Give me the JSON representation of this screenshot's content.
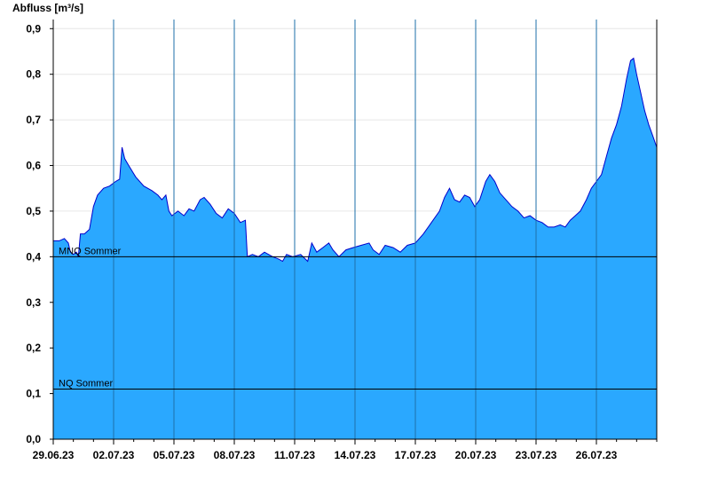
{
  "chart_data": {
    "type": "area",
    "ylabel": "Abfluss [m³/s]",
    "ylim": [
      0,
      0.92
    ],
    "y_ticks": [
      "0,0",
      "0,1",
      "0,2",
      "0,3",
      "0,4",
      "0,5",
      "0,6",
      "0,7",
      "0,8",
      "0,9"
    ],
    "y_tick_values": [
      0,
      0.1,
      0.2,
      0.3,
      0.4,
      0.5,
      0.6,
      0.7,
      0.8,
      0.9
    ],
    "x_start_date": "29.06.23",
    "x_range_days": [
      0,
      30
    ],
    "x_tick_labels": [
      "29.06.23",
      "02.07.23",
      "05.07.23",
      "08.07.23",
      "11.07.23",
      "14.07.23",
      "17.07.23",
      "20.07.23",
      "23.07.23",
      "26.07.23"
    ],
    "x_tick_days": [
      0,
      3,
      6,
      9,
      12,
      15,
      18,
      21,
      24,
      27
    ],
    "grid": true,
    "fill_color": "#2aa8ff",
    "line_color": "#0000cc",
    "reference_lines": [
      {
        "label": "MNQ Sommer",
        "value": 0.4
      },
      {
        "label": "NQ Sommer",
        "value": 0.11
      }
    ],
    "series": [
      {
        "name": "Abfluss",
        "points": [
          [
            0.0,
            0.435
          ],
          [
            0.3,
            0.435
          ],
          [
            0.55,
            0.44
          ],
          [
            0.75,
            0.43
          ],
          [
            0.85,
            0.41
          ],
          [
            1.0,
            0.405
          ],
          [
            1.15,
            0.41
          ],
          [
            1.25,
            0.4
          ],
          [
            1.35,
            0.45
          ],
          [
            1.55,
            0.45
          ],
          [
            1.8,
            0.46
          ],
          [
            2.0,
            0.51
          ],
          [
            2.2,
            0.535
          ],
          [
            2.5,
            0.55
          ],
          [
            2.8,
            0.555
          ],
          [
            3.1,
            0.565
          ],
          [
            3.3,
            0.57
          ],
          [
            3.42,
            0.64
          ],
          [
            3.55,
            0.615
          ],
          [
            3.75,
            0.6
          ],
          [
            4.1,
            0.575
          ],
          [
            4.5,
            0.555
          ],
          [
            4.9,
            0.545
          ],
          [
            5.2,
            0.535
          ],
          [
            5.4,
            0.525
          ],
          [
            5.6,
            0.535
          ],
          [
            5.75,
            0.5
          ],
          [
            5.9,
            0.49
          ],
          [
            6.2,
            0.5
          ],
          [
            6.5,
            0.49
          ],
          [
            6.75,
            0.505
          ],
          [
            7.0,
            0.5
          ],
          [
            7.3,
            0.525
          ],
          [
            7.5,
            0.53
          ],
          [
            7.8,
            0.515
          ],
          [
            8.1,
            0.495
          ],
          [
            8.4,
            0.485
          ],
          [
            8.7,
            0.505
          ],
          [
            9.0,
            0.495
          ],
          [
            9.3,
            0.475
          ],
          [
            9.55,
            0.48
          ],
          [
            9.65,
            0.4
          ],
          [
            9.9,
            0.405
          ],
          [
            10.2,
            0.4
          ],
          [
            10.5,
            0.41
          ],
          [
            10.9,
            0.4
          ],
          [
            11.2,
            0.395
          ],
          [
            11.4,
            0.39
          ],
          [
            11.6,
            0.405
          ],
          [
            11.9,
            0.4
          ],
          [
            12.3,
            0.405
          ],
          [
            12.65,
            0.39
          ],
          [
            12.85,
            0.43
          ],
          [
            13.1,
            0.41
          ],
          [
            13.4,
            0.42
          ],
          [
            13.7,
            0.43
          ],
          [
            13.9,
            0.415
          ],
          [
            14.2,
            0.4
          ],
          [
            14.55,
            0.415
          ],
          [
            14.9,
            0.42
          ],
          [
            15.3,
            0.425
          ],
          [
            15.7,
            0.43
          ],
          [
            15.9,
            0.415
          ],
          [
            16.2,
            0.405
          ],
          [
            16.5,
            0.425
          ],
          [
            16.9,
            0.42
          ],
          [
            17.25,
            0.41
          ],
          [
            17.6,
            0.425
          ],
          [
            18.0,
            0.43
          ],
          [
            18.4,
            0.45
          ],
          [
            18.8,
            0.475
          ],
          [
            19.2,
            0.5
          ],
          [
            19.45,
            0.53
          ],
          [
            19.7,
            0.55
          ],
          [
            19.95,
            0.525
          ],
          [
            20.2,
            0.52
          ],
          [
            20.45,
            0.535
          ],
          [
            20.7,
            0.53
          ],
          [
            20.95,
            0.51
          ],
          [
            21.2,
            0.525
          ],
          [
            21.5,
            0.565
          ],
          [
            21.7,
            0.58
          ],
          [
            21.95,
            0.565
          ],
          [
            22.2,
            0.54
          ],
          [
            22.5,
            0.525
          ],
          [
            22.8,
            0.51
          ],
          [
            23.1,
            0.5
          ],
          [
            23.4,
            0.485
          ],
          [
            23.7,
            0.49
          ],
          [
            24.0,
            0.48
          ],
          [
            24.3,
            0.475
          ],
          [
            24.6,
            0.465
          ],
          [
            24.9,
            0.465
          ],
          [
            25.2,
            0.47
          ],
          [
            25.45,
            0.465
          ],
          [
            25.7,
            0.48
          ],
          [
            25.95,
            0.49
          ],
          [
            26.2,
            0.5
          ],
          [
            26.5,
            0.525
          ],
          [
            26.75,
            0.55
          ],
          [
            27.0,
            0.565
          ],
          [
            27.25,
            0.58
          ],
          [
            27.5,
            0.62
          ],
          [
            27.75,
            0.66
          ],
          [
            28.0,
            0.69
          ],
          [
            28.25,
            0.73
          ],
          [
            28.5,
            0.79
          ],
          [
            28.7,
            0.83
          ],
          [
            28.85,
            0.835
          ],
          [
            29.0,
            0.8
          ],
          [
            29.2,
            0.76
          ],
          [
            29.4,
            0.72
          ],
          [
            29.6,
            0.69
          ],
          [
            29.8,
            0.665
          ],
          [
            30.0,
            0.64
          ]
        ]
      }
    ]
  }
}
